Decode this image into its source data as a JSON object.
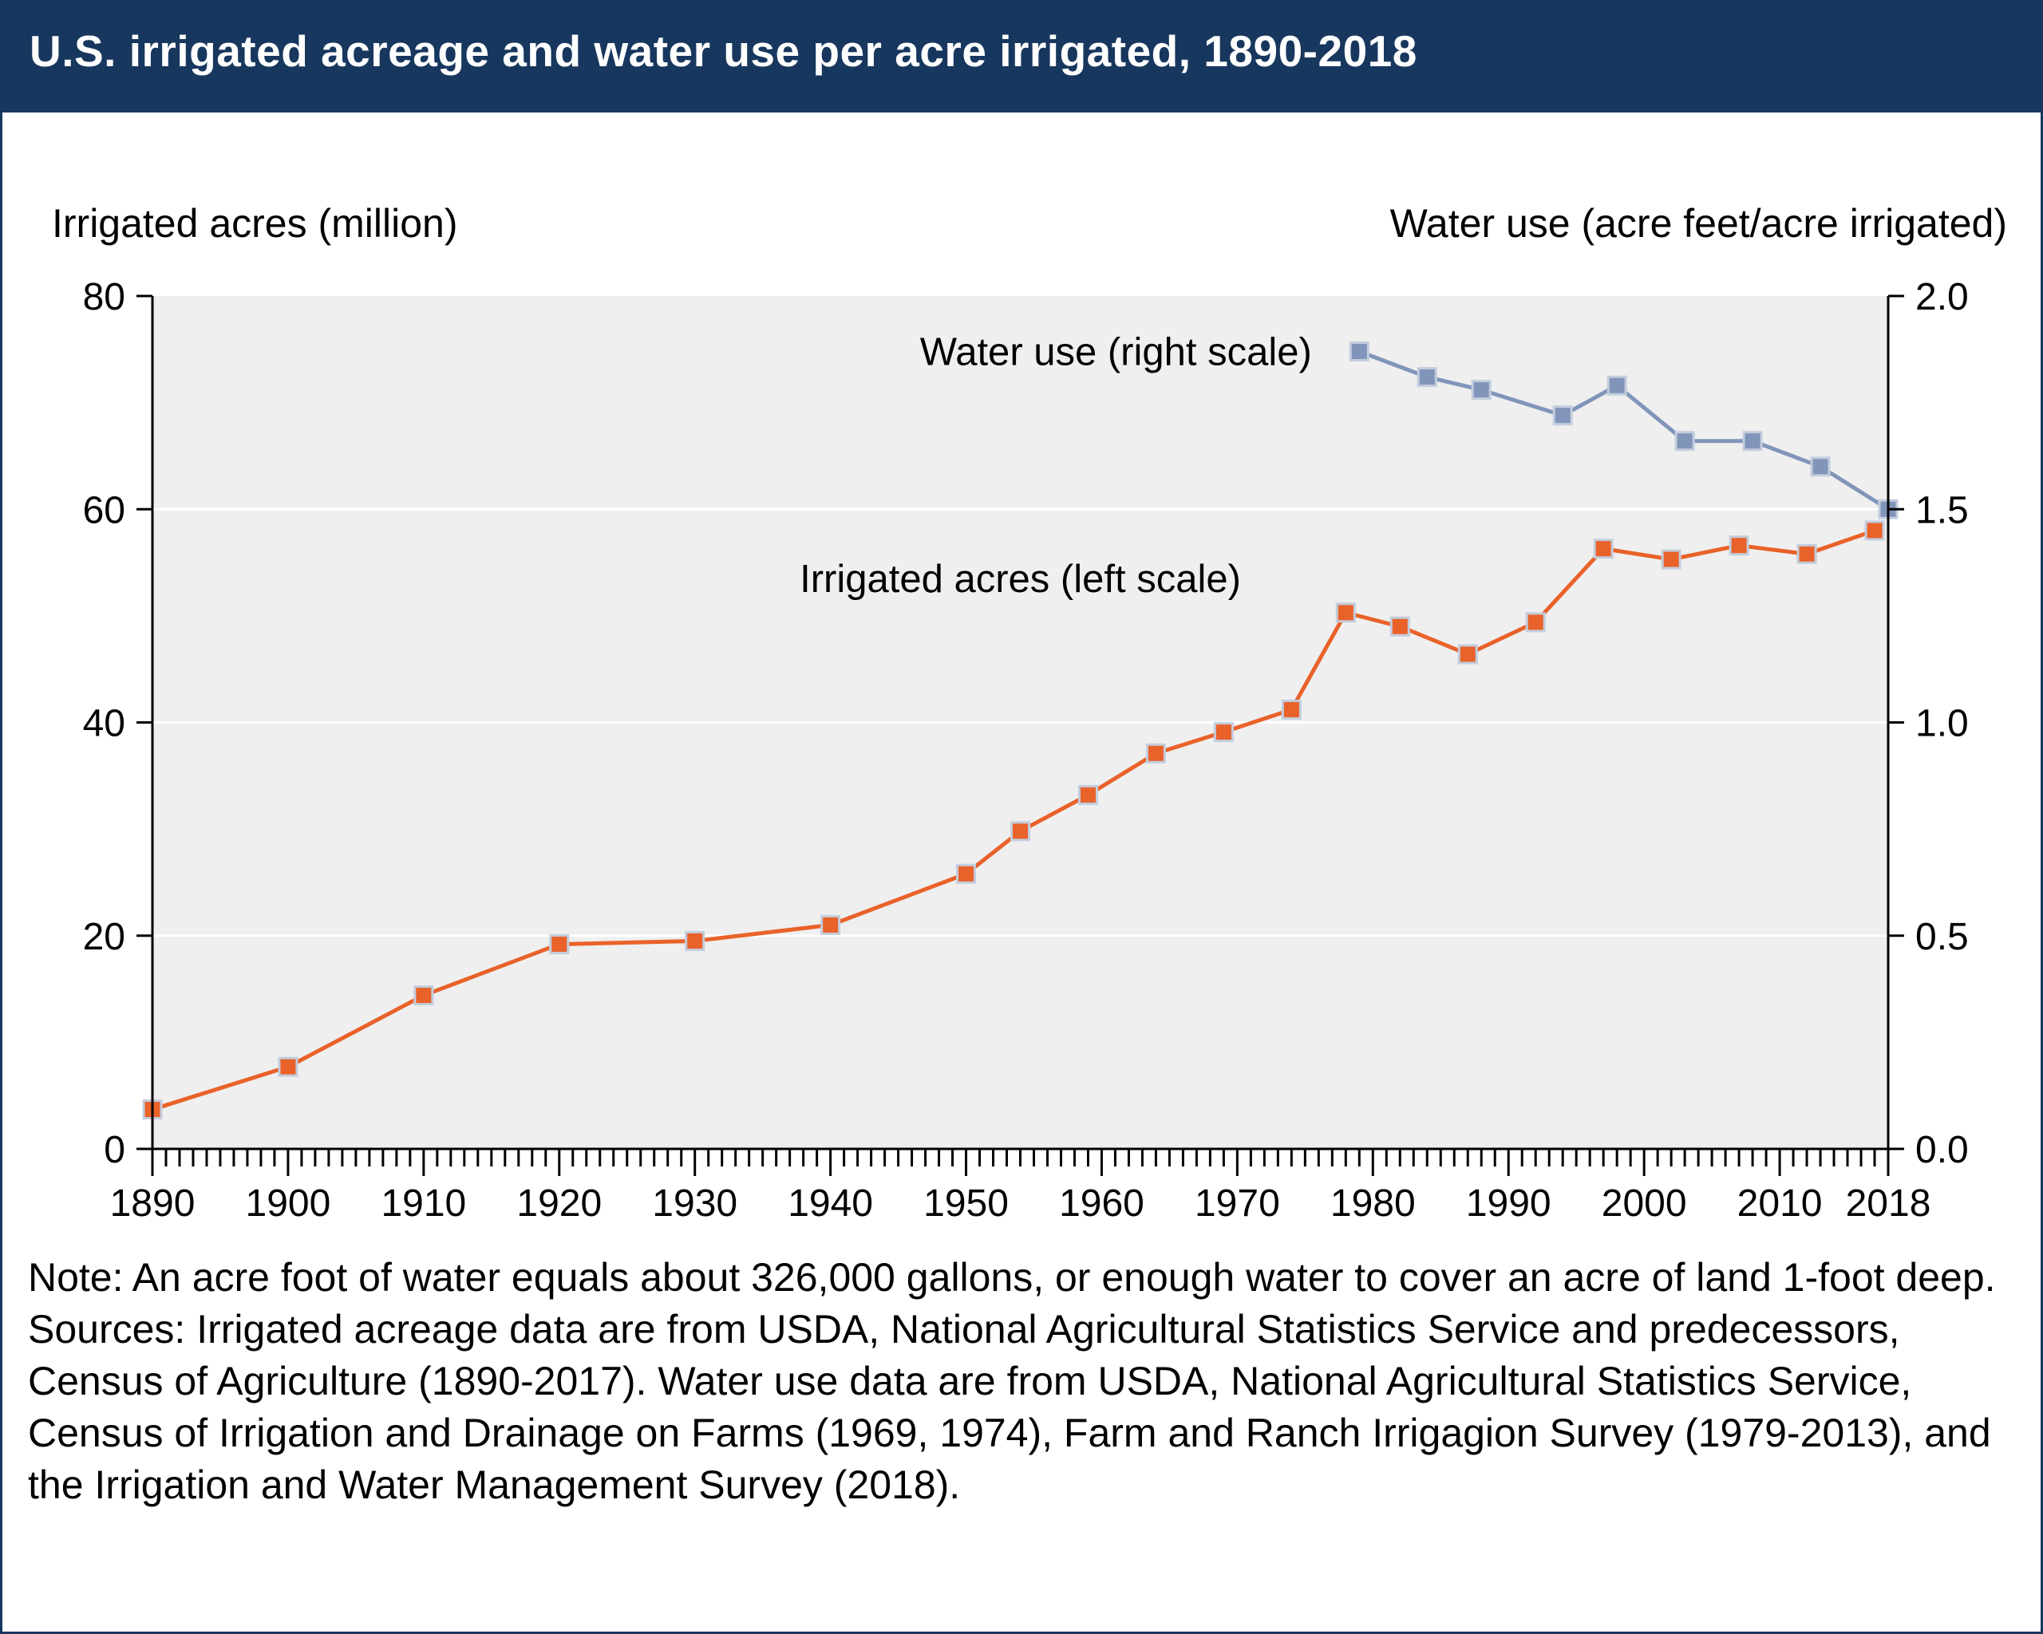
{
  "header": {
    "title": "U.S. irrigated acreage and water use per acre irrigated, 1890-2018"
  },
  "axes": {
    "left_label": "Irrigated acres (million)",
    "right_label": "Water use (acre feet/acre irrigated)",
    "x_range": [
      1890,
      2018
    ],
    "left_range": [
      0,
      80
    ],
    "right_range": [
      0,
      2
    ],
    "left_ticks": [
      0,
      20,
      40,
      60,
      80
    ],
    "right_ticks": [
      "0.0",
      "0.5",
      "1.0",
      "1.5",
      "2.0"
    ],
    "x_tick_labels": [
      1890,
      1900,
      1910,
      1920,
      1930,
      1940,
      1950,
      1960,
      1970,
      1980,
      1990,
      2000,
      2010,
      2018
    ]
  },
  "chart_data": {
    "type": "line",
    "title": "U.S. irrigated acreage and water use per acre irrigated, 1890-2018",
    "xlabel": "",
    "ylabel_left": "Irrigated acres (million)",
    "ylabel_right": "Water use (acre feet/acre irrigated)",
    "grid": "horizontal white gridlines on light gray plot background",
    "legend_position": "inline annotations",
    "series": [
      {
        "name": "Irrigated acres (left scale)",
        "axis": "left",
        "color": "#E9622A",
        "marker": "square",
        "x": [
          1890,
          1900,
          1910,
          1920,
          1930,
          1940,
          1950,
          1954,
          1959,
          1964,
          1969,
          1974,
          1978,
          1982,
          1987,
          1992,
          1997,
          2002,
          2007,
          2012,
          2017
        ],
        "values": [
          3.7,
          7.7,
          14.4,
          19.2,
          19.5,
          21.0,
          25.8,
          29.8,
          33.2,
          37.1,
          39.1,
          41.2,
          50.3,
          49.0,
          46.4,
          49.4,
          56.3,
          55.3,
          56.6,
          55.8,
          58.0
        ]
      },
      {
        "name": "Water use (right scale)",
        "axis": "right",
        "color": "#8195BA",
        "marker": "square",
        "x": [
          1979,
          1984,
          1988,
          1994,
          1998,
          2003,
          2008,
          2013,
          2018
        ],
        "values": [
          1.87,
          1.81,
          1.78,
          1.72,
          1.79,
          1.66,
          1.66,
          1.6,
          1.5
        ]
      }
    ],
    "annotations": [
      {
        "text": "Water use (right scale)",
        "year": 1975.5,
        "value": 1.87,
        "axis": "right",
        "anchor": "end"
      },
      {
        "text": "Irrigated acres (left scale)",
        "year": 1954,
        "value": 53.5,
        "axis": "left",
        "anchor": "middle"
      }
    ]
  },
  "notes": {
    "note": "Note: An acre foot of water equals about 326,000 gallons, or enough water to cover an acre of land 1-foot deep.",
    "sources": "Sources: Irrigated acreage data are from USDA, National Agricultural Statistics Service and predecessors, Census of Agriculture (1890-2017). Water use data are from USDA, National Agricultural Statistics Service, Census of Irrigation and Drainage on Farms (1969, 1974), Farm and Ranch Irrigagion Survey (1979-2013), and the Irrigation and Water Management Survey (2018)."
  },
  "theme": {
    "header_bg": "#17375E",
    "plot_bg": "#EFEFEF",
    "marker_stroke": "#C3CDDD",
    "grid_color": "#FFFFFF",
    "axis_color": "#000000"
  }
}
